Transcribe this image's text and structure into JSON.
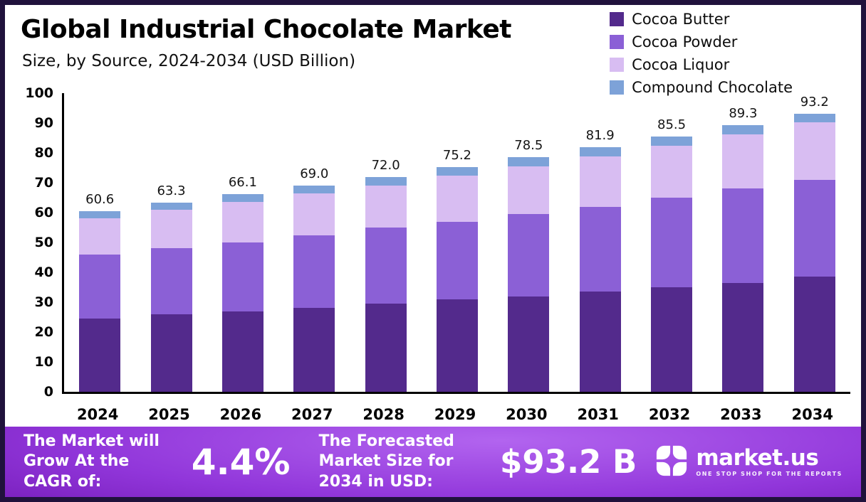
{
  "header": {
    "title": "Global Industrial Chocolate Market",
    "subtitle": "Size, by Source, 2024-2034 (USD Billion)"
  },
  "chart_data": {
    "type": "bar",
    "stacked": true,
    "title": "Global Industrial Chocolate Market Size, by Source, 2024-2034 (USD Billion)",
    "categories": [
      "2024",
      "2025",
      "2026",
      "2027",
      "2028",
      "2029",
      "2030",
      "2031",
      "2032",
      "2033",
      "2034"
    ],
    "total_labels": [
      "60.6",
      "63.3",
      "66.1",
      "69.0",
      "72.0",
      "75.2",
      "78.5",
      "81.9",
      "85.5",
      "89.3",
      "93.2"
    ],
    "totals": [
      60.6,
      63.3,
      66.1,
      69.0,
      72.0,
      75.2,
      78.5,
      81.9,
      85.5,
      89.3,
      93.2
    ],
    "series": [
      {
        "name": "Cocoa Butter",
        "color": "#532a8c",
        "values": [
          24.5,
          26.0,
          27.0,
          28.0,
          29.5,
          31.0,
          32.0,
          33.5,
          35.0,
          36.5,
          38.5
        ]
      },
      {
        "name": "Cocoa Powder",
        "color": "#8b60d6",
        "values": [
          21.5,
          22.0,
          23.0,
          24.5,
          25.5,
          26.0,
          27.5,
          28.5,
          30.0,
          31.5,
          32.5
        ]
      },
      {
        "name": "Cocoa Liquor",
        "color": "#d8bdf2",
        "values": [
          12.1,
          13.0,
          13.5,
          14.0,
          14.0,
          15.5,
          16.0,
          16.9,
          17.5,
          18.3,
          19.2
        ]
      },
      {
        "name": "Compound Chocolate",
        "color": "#7da2d8",
        "values": [
          2.5,
          2.3,
          2.6,
          2.5,
          3.0,
          2.7,
          3.0,
          3.0,
          3.0,
          3.0,
          3.0
        ]
      }
    ],
    "xlabel": "",
    "ylabel": "",
    "ylim": [
      0,
      100
    ],
    "yticks": [
      0,
      10,
      20,
      30,
      40,
      50,
      60,
      70,
      80,
      90,
      100
    ],
    "grid": false,
    "legend_position": "top-right"
  },
  "footer": {
    "cagr_label": "The Market will Grow At the CAGR of:",
    "cagr_value": "4.4%",
    "forecast_label": "The Forecasted Market Size for 2034 in USD:",
    "forecast_value": "$93.2 B",
    "brand_name": "market.us",
    "brand_tagline": "ONE STOP SHOP FOR THE REPORTS"
  },
  "colors": {
    "frame": "#20123c",
    "banner_purple_dark": "#4c0b7e",
    "banner_purple_light": "#b264ef",
    "axis": "#000000",
    "text": "#000000"
  }
}
